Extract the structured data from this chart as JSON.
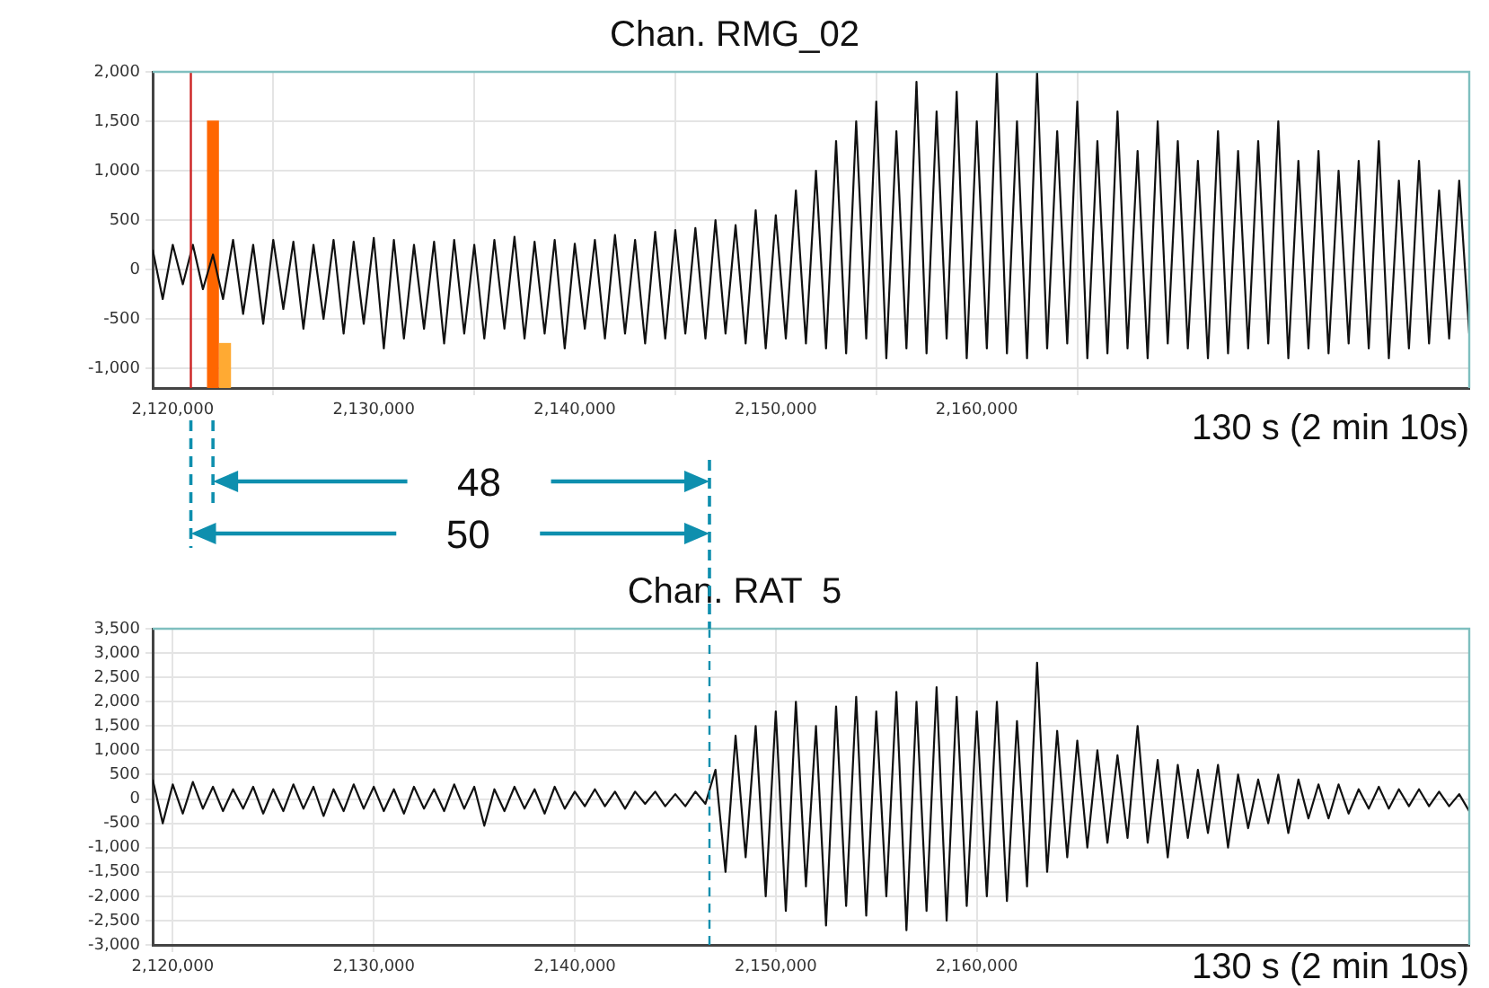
{
  "chart_data": [
    {
      "type": "line",
      "title": "Chan. RMG_02",
      "marker": "none",
      "grid": true,
      "x": [
        2119000,
        2119500,
        2120000,
        2120500,
        2121000,
        2121500,
        2122000,
        2122500,
        2123000,
        2123500,
        2124000,
        2124500,
        2125000,
        2125500,
        2126000,
        2126500,
        2127000,
        2127500,
        2128000,
        2128500,
        2129000,
        2129500,
        2130000,
        2130500,
        2131000,
        2131500,
        2132000,
        2132500,
        2133000,
        2133500,
        2134000,
        2134500,
        2135000,
        2135500,
        2136000,
        2136500,
        2137000,
        2137500,
        2138000,
        2138500,
        2139000,
        2139500,
        2140000,
        2140500,
        2141000,
        2141500,
        2142000,
        2142500,
        2143000,
        2143500,
        2144000,
        2144500,
        2145000,
        2145500,
        2146000,
        2146500,
        2147000,
        2147500,
        2148000,
        2148500,
        2149000,
        2149500,
        2150000,
        2150500,
        2151000,
        2151500,
        2152000,
        2152500,
        2153000,
        2153500,
        2154000,
        2154500,
        2155000,
        2155500,
        2156000,
        2156500,
        2157000,
        2157500,
        2158000,
        2158500,
        2159000,
        2159500,
        2160000,
        2160500,
        2161000,
        2161500,
        2162000,
        2162500,
        2163000,
        2163500,
        2164000,
        2164500,
        2165000,
        2165500,
        2166000,
        2166500,
        2167000,
        2167500,
        2168000,
        2168500,
        2169000,
        2169500,
        2170000,
        2170500,
        2171000,
        2171500,
        2172000,
        2172500,
        2173000,
        2173500,
        2174000,
        2174500,
        2175000,
        2175500,
        2176000,
        2176500,
        2177000,
        2177500,
        2178000,
        2178500,
        2179000,
        2179500,
        2180000,
        2180500,
        2181000,
        2181500,
        2182000,
        2182500,
        2183000,
        2183500,
        2184000,
        2184500
      ],
      "series": [
        {
          "type": "line",
          "color": "#111111",
          "values": [
            200,
            -300,
            250,
            -150,
            250,
            -200,
            150,
            -300,
            300,
            -450,
            250,
            -550,
            300,
            -400,
            280,
            -600,
            250,
            -500,
            300,
            -650,
            280,
            -550,
            320,
            -800,
            300,
            -700,
            250,
            -600,
            280,
            -750,
            300,
            -650,
            250,
            -700,
            300,
            -600,
            330,
            -700,
            280,
            -650,
            300,
            -800,
            260,
            -600,
            300,
            -700,
            350,
            -650,
            300,
            -750,
            380,
            -700,
            400,
            -650,
            420,
            -700,
            500,
            -650,
            450,
            -750,
            600,
            -800,
            550,
            -700,
            800,
            -750,
            1000,
            -800,
            1300,
            -850,
            1500,
            -700,
            1700,
            -900,
            1400,
            -800,
            1900,
            -850,
            1600,
            -700,
            1800,
            -900,
            1500,
            -800,
            2000,
            -850,
            1500,
            -900,
            2000,
            -800,
            1400,
            -750,
            1700,
            -900,
            1300,
            -850,
            1600,
            -800,
            1200,
            -900,
            1500,
            -750,
            1300,
            -800,
            1100,
            -900,
            1400,
            -850,
            1200,
            -800,
            1300,
            -750,
            1500,
            -900,
            1100,
            -800,
            1200,
            -850,
            1000,
            -750,
            1100,
            -800,
            1300,
            -900,
            900,
            -800,
            1100,
            -750,
            800,
            -700,
            900,
            -650
          ]
        },
        {
          "type": "bar",
          "color": "#ff6600",
          "x": [
            2122000
          ],
          "values": [
            2700
          ],
          "base": [
            -1200
          ]
        },
        {
          "type": "bar",
          "color": "#ffaa33",
          "x": [
            2122600
          ],
          "values": [
            450
          ],
          "base": [
            -1200
          ]
        }
      ],
      "xlim": [
        2119000,
        2184500
      ],
      "xticks": [
        {
          "value": 2120000,
          "label": "2,120,000"
        },
        {
          "value": 2130000,
          "label": "2,130,000"
        },
        {
          "value": 2140000,
          "label": "2,140,000"
        },
        {
          "value": 2150000,
          "label": "2,150,000"
        },
        {
          "value": 2160000,
          "label": "2,160,000"
        }
      ],
      "ylim": [
        -1200,
        2000
      ],
      "yticks": [
        {
          "value": -1000,
          "label": "-1,000"
        },
        -500,
        0,
        500,
        {
          "value": 1000,
          "label": "1,000"
        },
        {
          "value": 1500,
          "label": "1,500"
        },
        {
          "value": 2000,
          "label": "2,000"
        }
      ],
      "ref_lines": [
        {
          "axis": "x",
          "value": 2120900,
          "color": "#cc2222"
        }
      ],
      "annotations": [
        "130 s (2 min 10s)",
        "48",
        "50"
      ]
    },
    {
      "type": "line",
      "title": "Chan. RAT  5",
      "marker": "none",
      "grid": true,
      "x": [
        2119000,
        2119500,
        2120000,
        2120500,
        2121000,
        2121500,
        2122000,
        2122500,
        2123000,
        2123500,
        2124000,
        2124500,
        2125000,
        2125500,
        2126000,
        2126500,
        2127000,
        2127500,
        2128000,
        2128500,
        2129000,
        2129500,
        2130000,
        2130500,
        2131000,
        2131500,
        2132000,
        2132500,
        2133000,
        2133500,
        2134000,
        2134500,
        2135000,
        2135500,
        2136000,
        2136500,
        2137000,
        2137500,
        2138000,
        2138500,
        2139000,
        2139500,
        2140000,
        2140500,
        2141000,
        2141500,
        2142000,
        2142500,
        2143000,
        2143500,
        2144000,
        2144500,
        2145000,
        2145500,
        2146000,
        2146500,
        2147000,
        2147500,
        2148000,
        2148500,
        2149000,
        2149500,
        2150000,
        2150500,
        2151000,
        2151500,
        2152000,
        2152500,
        2153000,
        2153500,
        2154000,
        2154500,
        2155000,
        2155500,
        2156000,
        2156500,
        2157000,
        2157500,
        2158000,
        2158500,
        2159000,
        2159500,
        2160000,
        2160500,
        2161000,
        2161500,
        2162000,
        2162500,
        2163000,
        2163500,
        2164000,
        2164500,
        2165000,
        2165500,
        2166000,
        2166500,
        2167000,
        2167500,
        2168000,
        2168500,
        2169000,
        2169500,
        2170000,
        2170500,
        2171000,
        2171500,
        2172000,
        2172500,
        2173000,
        2173500,
        2174000,
        2174500,
        2175000,
        2175500,
        2176000,
        2176500,
        2177000,
        2177500,
        2178000,
        2178500,
        2179000,
        2179500,
        2180000,
        2180500,
        2181000,
        2181500,
        2182000,
        2182500,
        2183000,
        2183500,
        2184000,
        2184500
      ],
      "series": [
        {
          "type": "line",
          "color": "#111111",
          "values": [
            400,
            -500,
            300,
            -300,
            350,
            -200,
            250,
            -250,
            200,
            -200,
            250,
            -300,
            200,
            -250,
            300,
            -200,
            250,
            -350,
            200,
            -250,
            300,
            -200,
            250,
            -250,
            200,
            -300,
            250,
            -200,
            200,
            -250,
            300,
            -200,
            250,
            -550,
            200,
            -250,
            250,
            -200,
            200,
            -300,
            250,
            -200,
            150,
            -150,
            200,
            -150,
            150,
            -200,
            150,
            -100,
            150,
            -150,
            100,
            -150,
            150,
            -100,
            600,
            -1500,
            1300,
            -1200,
            1500,
            -2000,
            1800,
            -2300,
            2000,
            -1800,
            1500,
            -2600,
            1900,
            -2200,
            2100,
            -2400,
            1800,
            -2000,
            2200,
            -2700,
            2000,
            -2300,
            2300,
            -2500,
            2100,
            -2200,
            1800,
            -2000,
            2000,
            -2100,
            1600,
            -1800,
            2800,
            -1500,
            1400,
            -1200,
            1200,
            -1000,
            1000,
            -900,
            900,
            -800,
            1500,
            -900,
            800,
            -1200,
            700,
            -800,
            600,
            -700,
            700,
            -1000,
            500,
            -600,
            400,
            -500,
            500,
            -700,
            400,
            -400,
            300,
            -400,
            300,
            -300,
            200,
            -200,
            250,
            -200,
            200,
            -150,
            200,
            -150,
            150,
            -150,
            100,
            -250
          ]
        }
      ],
      "xlim": [
        2119000,
        2184500
      ],
      "xticks": [
        {
          "value": 2120000,
          "label": "2,120,000"
        },
        {
          "value": 2130000,
          "label": "2,130,000"
        },
        {
          "value": 2140000,
          "label": "2,140,000"
        },
        {
          "value": 2150000,
          "label": "2,150,000"
        },
        {
          "value": 2160000,
          "label": "2,160,000"
        }
      ],
      "ylim": [
        -3000,
        3500
      ],
      "yticks": [
        {
          "value": -3000,
          "label": "-3,000"
        },
        {
          "value": -2500,
          "label": "-2,500"
        },
        {
          "value": -2000,
          "label": "-2,000"
        },
        {
          "value": -1500,
          "label": "-1,500"
        },
        {
          "value": -1000,
          "label": "-1,000"
        },
        -500,
        0,
        500,
        {
          "value": 1000,
          "label": "1,000"
        },
        {
          "value": 1500,
          "label": "1,500"
        },
        {
          "value": 2000,
          "label": "2,000"
        },
        {
          "value": 2500,
          "label": "2,500"
        },
        {
          "value": 3000,
          "label": "3,000"
        },
        {
          "value": 3500,
          "label": "3,500"
        }
      ],
      "ref_lines": [
        {
          "axis": "x",
          "value": 2146700,
          "color": "#0e8fae",
          "line_style": "dashed"
        }
      ],
      "annotations": [
        "130 s (2 min 10s)"
      ]
    }
  ]
}
